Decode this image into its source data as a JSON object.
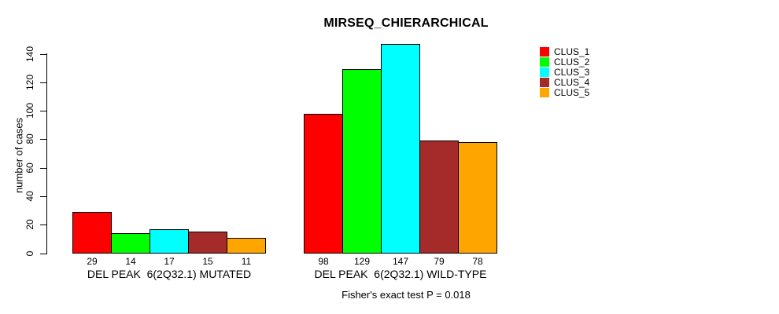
{
  "title": "MIRSEQ_CHIERARCHICAL",
  "footer": "Fisher's exact test P = 0.018",
  "legend": [
    {
      "label": "CLUS_1",
      "color": "#FF0000"
    },
    {
      "label": "CLUS_2",
      "color": "#00FF00"
    },
    {
      "label": "CLUS_3",
      "color": "#00FFFF"
    },
    {
      "label": "CLUS_4",
      "color": "#A52A2A"
    },
    {
      "label": "CLUS_5",
      "color": "#FFA500"
    }
  ],
  "chart_data": {
    "type": "bar",
    "title": "MIRSEQ_CHIERARCHICAL",
    "xlabel": "",
    "ylabel": "number of cases",
    "annotation": "Fisher's exact test P = 0.018",
    "legend_position": "right",
    "grid": false,
    "yticks": [
      0,
      20,
      40,
      60,
      80,
      100,
      120,
      140
    ],
    "ylim": [
      0,
      147
    ],
    "series_names": [
      "CLUS_1",
      "CLUS_2",
      "CLUS_3",
      "CLUS_4",
      "CLUS_5"
    ],
    "colors": [
      "#FF0000",
      "#00FF00",
      "#00FFFF",
      "#A52A2A",
      "#FFA500"
    ],
    "groups": [
      {
        "label": "DEL PEAK  6(2Q32.1) MUTATED",
        "values": [
          29,
          14,
          17,
          15,
          11
        ]
      },
      {
        "label": "DEL PEAK  6(2Q32.1) WILD-TYPE",
        "values": [
          98,
          129,
          147,
          79,
          78
        ]
      }
    ]
  }
}
